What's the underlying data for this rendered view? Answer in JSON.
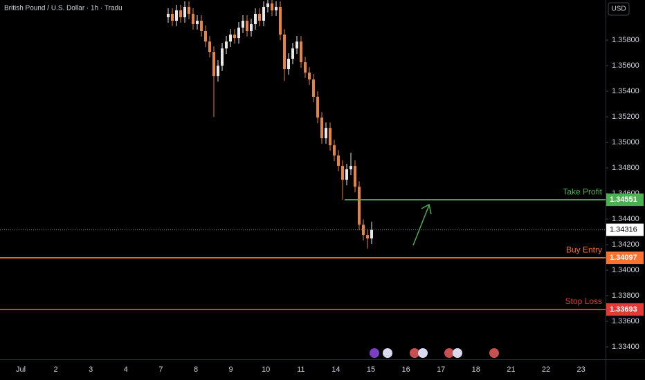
{
  "chart_data": {
    "type": "candlestick",
    "title": "British Pound / U.S. Dollar · 1h · Tradu",
    "currency": "USD",
    "categories": [
      "Jul",
      "2",
      "3",
      "4",
      "7",
      "8",
      "9",
      "10",
      "11",
      "14",
      "15",
      "16",
      "17",
      "18",
      "21",
      "22",
      "23"
    ],
    "ylim": [
      1.33303,
      1.36114
    ],
    "yticks": [
      {
        "value": 1.358,
        "label": "1.35800"
      },
      {
        "value": 1.356,
        "label": "1.35600"
      },
      {
        "value": 1.354,
        "label": "1.35400"
      },
      {
        "value": 1.352,
        "label": "1.35200"
      },
      {
        "value": 1.35,
        "label": "1.35000"
      },
      {
        "value": 1.348,
        "label": "1.34800"
      },
      {
        "value": 1.346,
        "label": "1.34600"
      },
      {
        "value": 1.344,
        "label": "1.34400"
      },
      {
        "value": 1.342,
        "label": "1.34200"
      },
      {
        "value": 1.34,
        "label": "1.34000"
      },
      {
        "value": 1.338,
        "label": "1.33800"
      },
      {
        "value": 1.336,
        "label": "1.33600"
      },
      {
        "value": 1.334,
        "label": "1.33400"
      }
    ],
    "up_color": "#e8e8e8",
    "down_color": "#e8833a",
    "open": [
      1.35979,
      1.36006,
      1.35952,
      1.36033,
      1.35979,
      1.3606,
      1.36006,
      1.35925,
      1.35952,
      1.35871,
      1.35789,
      1.35708,
      1.35519,
      1.356,
      1.35735,
      1.35789,
      1.35843,
      1.35816,
      1.35898,
      1.35952,
      1.35871,
      1.35925,
      1.36006,
      1.35952,
      1.3606,
      1.36087,
      1.36033,
      1.3606,
      1.35843,
      1.35573,
      1.35654,
      1.35735,
      1.35789,
      1.35627,
      1.35546,
      1.35492,
      1.35357,
      1.35194,
      1.35032,
      1.35113,
      1.34978,
      1.34897,
      1.34816,
      1.34707,
      1.34789,
      1.34816,
      1.34653,
      1.34356,
      1.34275,
      1.34248
    ],
    "high": [
      1.36049,
      1.36049,
      1.36076,
      1.36076,
      1.36103,
      1.36103,
      1.36049,
      1.35995,
      1.35995,
      1.35914,
      1.35832,
      1.35751,
      1.35643,
      1.35778,
      1.35832,
      1.35886,
      1.35886,
      1.35941,
      1.35995,
      1.35995,
      1.35968,
      1.36049,
      1.36049,
      1.36103,
      1.3613,
      1.3613,
      1.36103,
      1.36103,
      1.35886,
      1.35697,
      1.35778,
      1.35832,
      1.35832,
      1.3567,
      1.35589,
      1.35535,
      1.354,
      1.35237,
      1.35156,
      1.35156,
      1.35021,
      1.3494,
      1.34859,
      1.34832,
      1.3492,
      1.34859,
      1.34696,
      1.34399,
      1.34318,
      1.3438
    ],
    "low": [
      1.35936,
      1.35909,
      1.35909,
      1.35936,
      1.35936,
      1.35963,
      1.35882,
      1.35882,
      1.35828,
      1.35746,
      1.35665,
      1.352,
      1.35476,
      1.35557,
      1.35692,
      1.35746,
      1.35773,
      1.35773,
      1.35855,
      1.35828,
      1.35828,
      1.35882,
      1.35909,
      1.35909,
      1.36017,
      1.3599,
      1.3599,
      1.358,
      1.3548,
      1.3553,
      1.35611,
      1.35692,
      1.35584,
      1.35503,
      1.35449,
      1.35314,
      1.35151,
      1.34989,
      1.34989,
      1.34935,
      1.34854,
      1.34773,
      1.34551,
      1.34664,
      1.34746,
      1.3461,
      1.34313,
      1.34232,
      1.3417,
      1.34205
    ],
    "close": [
      1.36006,
      1.35952,
      1.36033,
      1.35979,
      1.3606,
      1.36006,
      1.35925,
      1.35952,
      1.35871,
      1.35789,
      1.35708,
      1.35519,
      1.356,
      1.35735,
      1.35789,
      1.35843,
      1.35816,
      1.35898,
      1.35952,
      1.35871,
      1.35925,
      1.36006,
      1.35952,
      1.3606,
      1.36087,
      1.36033,
      1.3606,
      1.35843,
      1.35573,
      1.35654,
      1.35735,
      1.35789,
      1.35627,
      1.35546,
      1.35492,
      1.35357,
      1.35194,
      1.35032,
      1.35113,
      1.34978,
      1.34897,
      1.34816,
      1.34707,
      1.34789,
      1.34816,
      1.34653,
      1.34356,
      1.34275,
      1.34248,
      1.34316
    ],
    "current_price": 1.34316,
    "levels": [
      {
        "name": "Take Profit",
        "value": 1.34551,
        "color": "#4caf50"
      },
      {
        "name": "Buy Entry",
        "value": 1.34097,
        "color": "#f7712f"
      },
      {
        "name": "Stop Loss",
        "value": 1.33693,
        "color": "#e53935"
      }
    ]
  }
}
